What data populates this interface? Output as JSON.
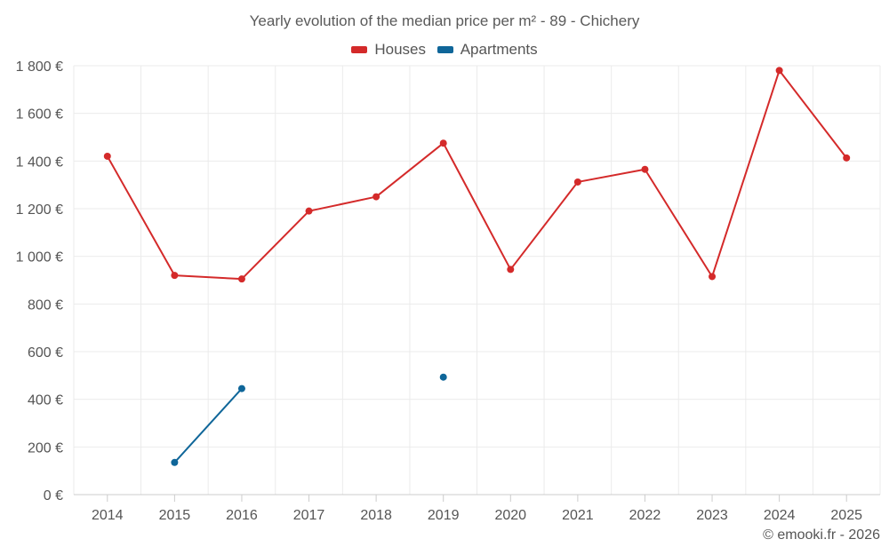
{
  "chart_data": {
    "type": "line",
    "title": "Yearly evolution of the median price per m² - 89 - Chichery",
    "xlabel": "",
    "ylabel": "",
    "categories": [
      "2014",
      "2015",
      "2016",
      "2017",
      "2018",
      "2019",
      "2020",
      "2021",
      "2022",
      "2023",
      "2024",
      "2025"
    ],
    "ylim": [
      0,
      1800
    ],
    "yticks": [
      0,
      200,
      400,
      600,
      800,
      1000,
      1200,
      1400,
      1600,
      1800
    ],
    "ytick_labels": [
      "0 €",
      "200 €",
      "400 €",
      "600 €",
      "800 €",
      "1 000 €",
      "1 200 €",
      "1 400 €",
      "1 600 €",
      "1 800 €"
    ],
    "grid": true,
    "legend_position": "top-center",
    "series": [
      {
        "name": "Houses",
        "color": "#d42a2a",
        "values": [
          1420,
          920,
          905,
          1190,
          1250,
          1475,
          945,
          1312,
          1365,
          915,
          1780,
          1413
        ]
      },
      {
        "name": "Apartments",
        "color": "#0f6699",
        "values": [
          null,
          135,
          445,
          null,
          null,
          493,
          null,
          null,
          null,
          null,
          null,
          null
        ]
      }
    ]
  },
  "credit": "© emooki.fr - 2026"
}
